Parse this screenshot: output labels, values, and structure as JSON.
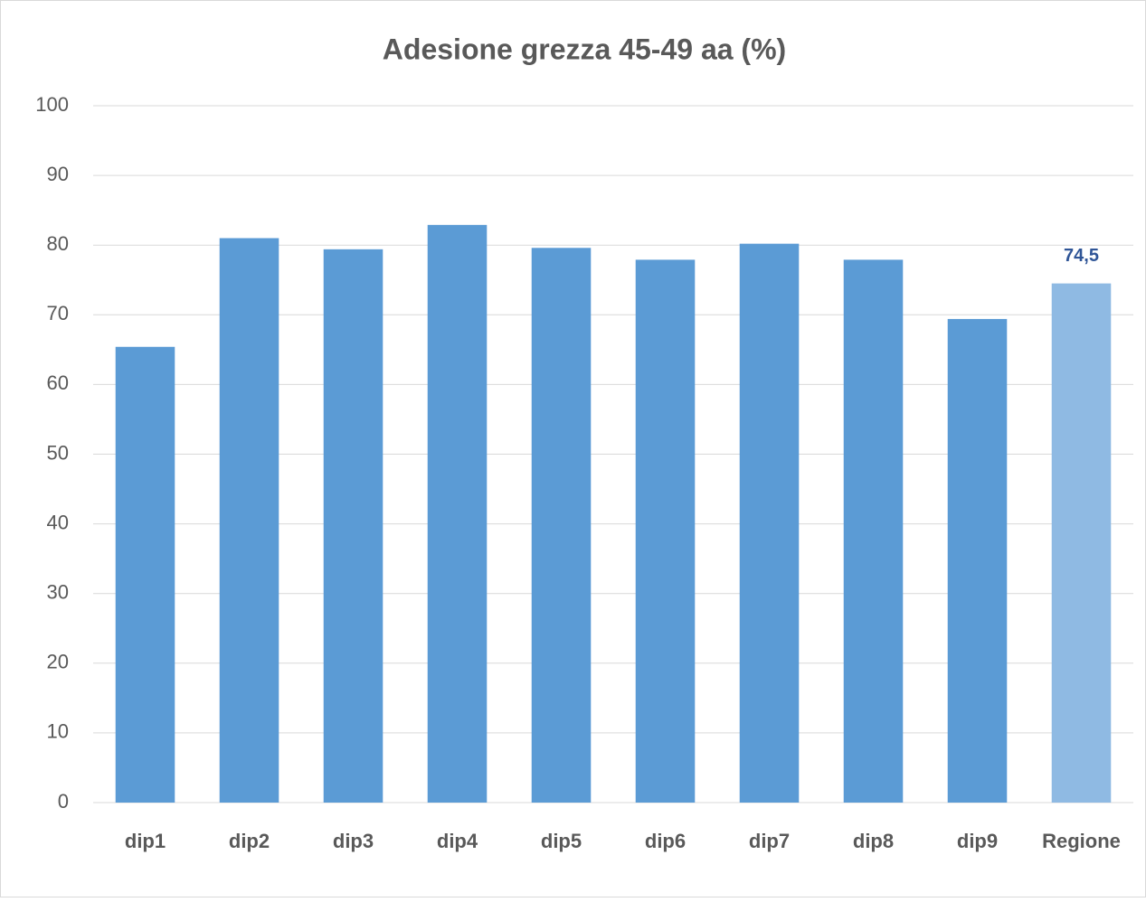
{
  "chart_data": {
    "type": "bar",
    "title": "Adesione grezza 45-49 aa (%)",
    "categories": [
      "dip1",
      "dip2",
      "dip3",
      "dip4",
      "dip5",
      "dip6",
      "dip7",
      "dip8",
      "dip9",
      "Regione"
    ],
    "values": [
      65.4,
      81,
      79.4,
      82.9,
      79.6,
      77.9,
      80.2,
      77.9,
      69.4,
      74.5
    ],
    "value_labels": [
      null,
      null,
      null,
      null,
      null,
      null,
      null,
      null,
      null,
      "74,5"
    ],
    "colors": [
      "#5b9bd5",
      "#5b9bd5",
      "#5b9bd5",
      "#5b9bd5",
      "#5b9bd5",
      "#5b9bd5",
      "#5b9bd5",
      "#5b9bd5",
      "#5b9bd5",
      "#8fbae3"
    ],
    "ylim": [
      0,
      100
    ],
    "yticks": [
      0,
      10,
      20,
      30,
      40,
      50,
      60,
      70,
      80,
      90,
      100
    ],
    "grid": true
  }
}
